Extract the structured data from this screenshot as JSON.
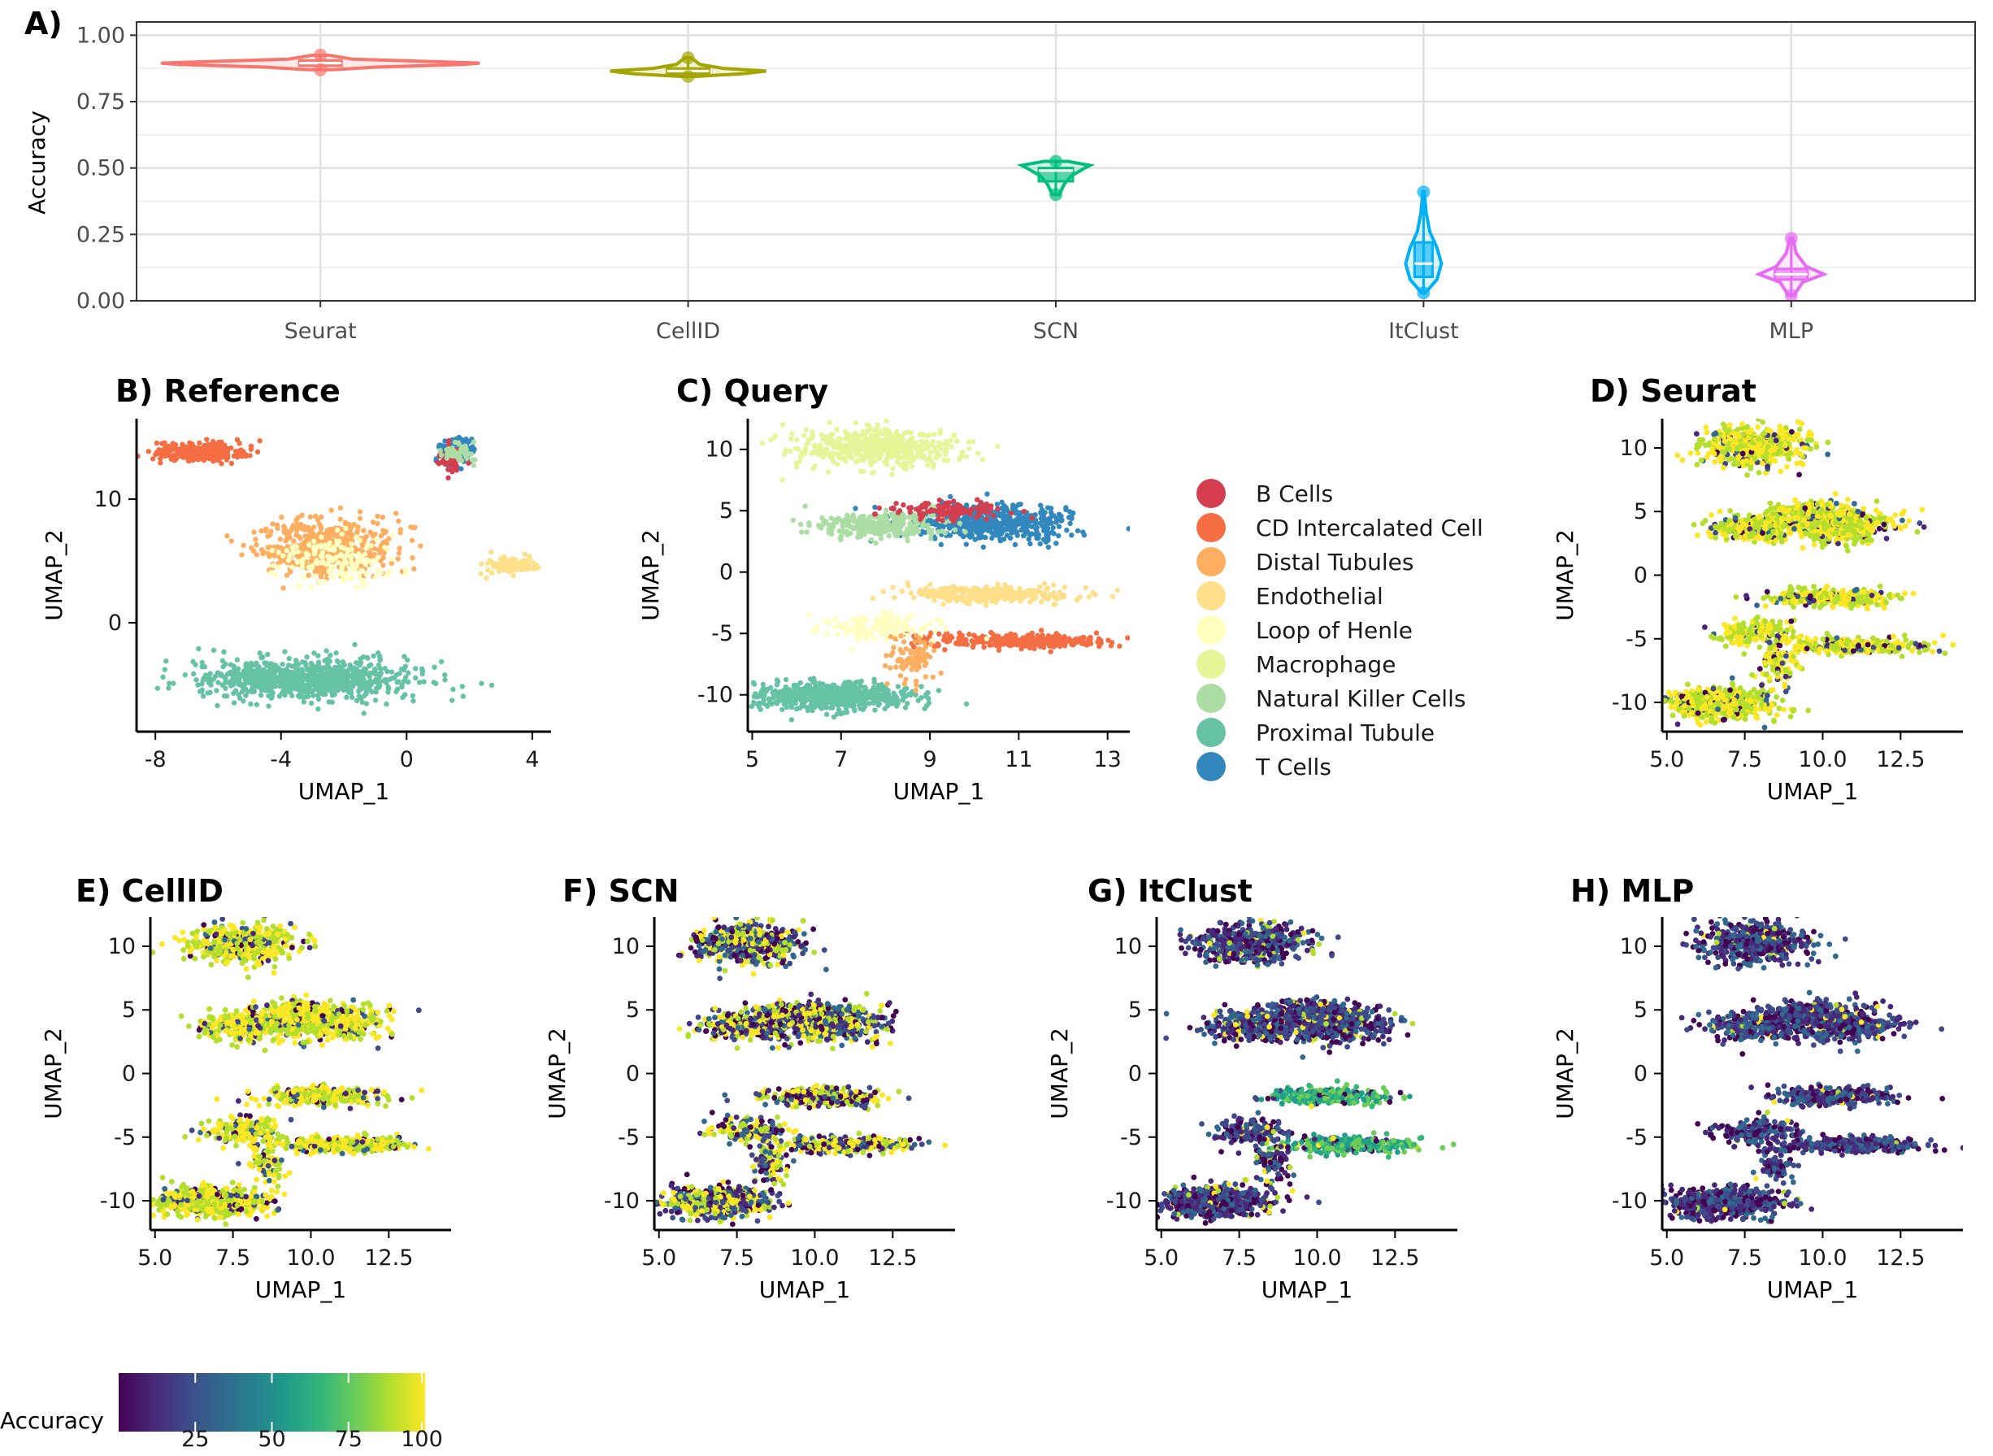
{
  "panel_a": {
    "tag": "A)",
    "ylabel": "Accuracy",
    "chart_data": {
      "type": "violin",
      "categories": [
        "Seurat",
        "CellID",
        "SCN",
        "ItClust",
        "MLP"
      ],
      "ylim": [
        0,
        1.05
      ],
      "yticks": [
        0.0,
        0.25,
        0.5,
        0.75,
        1.0
      ],
      "ytick_labels": [
        "0.00",
        "0.25",
        "0.50",
        "0.75",
        "1.00"
      ],
      "grid": true,
      "series": [
        {
          "name": "Seurat",
          "color": "#F8766D",
          "median": 0.895,
          "q1": 0.885,
          "q3": 0.905,
          "min": 0.87,
          "max": 0.925,
          "density": [
            [
              0.87,
              0.08
            ],
            [
              0.88,
              0.35
            ],
            [
              0.89,
              0.9
            ],
            [
              0.895,
              1.0
            ],
            [
              0.9,
              0.75
            ],
            [
              0.91,
              0.2
            ],
            [
              0.925,
              0.05
            ]
          ]
        },
        {
          "name": "CellID",
          "color": "#A3A500",
          "median": 0.865,
          "q1": 0.855,
          "q3": 0.875,
          "min": 0.845,
          "max": 0.915,
          "density": [
            [
              0.845,
              0.1
            ],
            [
              0.855,
              0.7
            ],
            [
              0.865,
              1.0
            ],
            [
              0.875,
              0.45
            ],
            [
              0.89,
              0.15
            ],
            [
              0.915,
              0.04
            ]
          ]
        },
        {
          "name": "SCN",
          "color": "#00BF7D",
          "median": 0.49,
          "q1": 0.45,
          "q3": 0.5,
          "min": 0.4,
          "max": 0.525,
          "density": [
            [
              0.4,
              0.1
            ],
            [
              0.44,
              0.25
            ],
            [
              0.47,
              0.45
            ],
            [
              0.5,
              0.85
            ],
            [
              0.51,
              1.0
            ],
            [
              0.525,
              0.35
            ]
          ]
        },
        {
          "name": "ItClust",
          "color": "#00B0F6",
          "median": 0.14,
          "q1": 0.09,
          "q3": 0.22,
          "min": 0.03,
          "max": 0.41,
          "density": [
            [
              0.03,
              0.1
            ],
            [
              0.08,
              0.75
            ],
            [
              0.14,
              1.0
            ],
            [
              0.2,
              0.75
            ],
            [
              0.26,
              0.35
            ],
            [
              0.33,
              0.15
            ],
            [
              0.41,
              0.04
            ]
          ]
        },
        {
          "name": "MLP",
          "color": "#E76BF3",
          "median": 0.1,
          "q1": 0.08,
          "q3": 0.12,
          "min": 0.02,
          "max": 0.235,
          "density": [
            [
              0.02,
              0.08
            ],
            [
              0.07,
              0.35
            ],
            [
              0.1,
              1.0
            ],
            [
              0.13,
              0.45
            ],
            [
              0.18,
              0.15
            ],
            [
              0.235,
              0.05
            ]
          ]
        }
      ]
    }
  },
  "umaps": {
    "xlabel": "UMAP_1",
    "ylabel": "UMAP_2",
    "cell_types": [
      {
        "name": "B Cells",
        "color": "#D53E4F"
      },
      {
        "name": "CD Intercalated Cell",
        "color": "#F46D43"
      },
      {
        "name": "Distal Tubules",
        "color": "#FDAE61"
      },
      {
        "name": "Endothelial",
        "color": "#FEE08B"
      },
      {
        "name": "Loop of Henle",
        "color": "#FFFFBF"
      },
      {
        "name": "Macrophage",
        "color": "#E6F598"
      },
      {
        "name": "Natural Killer Cells",
        "color": "#ABDDA4"
      },
      {
        "name": "Proximal Tubule",
        "color": "#66C2A5"
      },
      {
        "name": "T Cells",
        "color": "#3288BD"
      }
    ],
    "panels": [
      {
        "key": "B",
        "title": "B) Reference",
        "xlim": [
          -8.6,
          4.6
        ],
        "ylim": [
          -8.8,
          16.5
        ],
        "xticks": [
          -8,
          -4,
          0,
          4
        ],
        "xtick_labels": [
          "-8",
          "-4",
          "0",
          "4"
        ],
        "yticks": [
          0,
          10
        ],
        "ytick_labels": [
          "0",
          "10"
        ],
        "mode": "celltype"
      },
      {
        "key": "C",
        "title": "C) Query",
        "xlim": [
          4.9,
          13.5
        ],
        "ylim": [
          -13.0,
          12.5
        ],
        "xticks": [
          5,
          7,
          9,
          11,
          13
        ],
        "xtick_labels": [
          "5",
          "7",
          "9",
          "11",
          "13"
        ],
        "yticks": [
          -10,
          -5,
          0,
          5,
          10
        ],
        "ytick_labels": [
          "-10",
          "-5",
          "0",
          "5",
          "10"
        ],
        "mode": "celltype"
      },
      {
        "key": "D",
        "title": "D) Seurat",
        "xlim": [
          4.85,
          14.5
        ],
        "ylim": [
          -12.3,
          12.3
        ],
        "xticks": [
          5,
          7.5,
          10,
          12.5
        ],
        "xtick_labels": [
          "5.0",
          "7.5",
          "10.0",
          "12.5"
        ],
        "yticks": [
          -10,
          -5,
          0,
          5,
          10
        ],
        "ytick_labels": [
          "-10",
          "-5",
          "0",
          "5",
          "10"
        ],
        "mode": "accuracy",
        "high_fraction": 0.85
      },
      {
        "key": "E",
        "title": "E) CellID",
        "xlim": [
          4.85,
          14.5
        ],
        "ylim": [
          -12.3,
          12.3
        ],
        "xticks": [
          5,
          7.5,
          10,
          12.5
        ],
        "xtick_labels": [
          "5.0",
          "7.5",
          "10.0",
          "12.5"
        ],
        "yticks": [
          -10,
          -5,
          0,
          5,
          10
        ],
        "ytick_labels": [
          "-10",
          "-5",
          "0",
          "5",
          "10"
        ],
        "mode": "accuracy",
        "high_fraction": 0.82
      },
      {
        "key": "F",
        "title": "F) SCN",
        "xlim": [
          4.85,
          14.5
        ],
        "ylim": [
          -12.3,
          12.3
        ],
        "xticks": [
          5,
          7.5,
          10,
          12.5
        ],
        "xtick_labels": [
          "5.0",
          "7.5",
          "10.0",
          "12.5"
        ],
        "yticks": [
          -10,
          -5,
          0,
          5,
          10
        ],
        "ytick_labels": [
          "-10",
          "-5",
          "0",
          "5",
          "10"
        ],
        "mode": "accuracy",
        "high_fraction": 0.45
      },
      {
        "key": "G",
        "title": "G) ItClust",
        "xlim": [
          4.85,
          14.5
        ],
        "ylim": [
          -12.3,
          12.3
        ],
        "xticks": [
          5,
          7.5,
          10,
          12.5
        ],
        "xtick_labels": [
          "5.0",
          "7.5",
          "10.0",
          "12.5"
        ],
        "yticks": [
          -10,
          -5,
          0,
          5,
          10
        ],
        "ytick_labels": [
          "-10",
          "-5",
          "0",
          "5",
          "10"
        ],
        "mode": "accuracy",
        "high_fraction": 0.12
      },
      {
        "key": "H",
        "title": "H) MLP",
        "xlim": [
          4.85,
          14.5
        ],
        "ylim": [
          -12.3,
          12.3
        ],
        "xticks": [
          5,
          7.5,
          10,
          12.5
        ],
        "xtick_labels": [
          "5.0",
          "7.5",
          "10.0",
          "12.5"
        ],
        "yticks": [
          -10,
          -5,
          0,
          5,
          10
        ],
        "ytick_labels": [
          "-10",
          "-5",
          "0",
          "5",
          "10"
        ],
        "mode": "accuracy",
        "high_fraction": 0.05
      }
    ]
  },
  "colorbar": {
    "label": "Accuracy",
    "range": [
      0,
      100
    ],
    "ticks": [
      25,
      50,
      75,
      100
    ],
    "tick_labels": [
      "25",
      "50",
      "75",
      "100"
    ],
    "colors": [
      "#440154",
      "#482878",
      "#3E4A89",
      "#31688E",
      "#26828E",
      "#1F9E89",
      "#35B779",
      "#6DCD59",
      "#B4DE2C",
      "#FDE725"
    ]
  }
}
